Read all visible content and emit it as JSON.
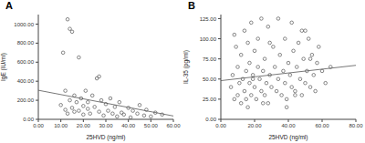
{
  "chart_data": [
    {
      "type": "scatter",
      "title": "A",
      "x_label": "25HVD (ng/ml)",
      "y_label": "IgE (IU/ml)",
      "color": "#555555",
      "marker": "circle",
      "x": [
        10,
        11,
        12,
        12,
        13,
        13,
        14,
        14,
        15,
        15,
        16,
        16,
        17,
        18,
        18,
        19,
        20,
        20,
        21,
        22,
        22,
        23,
        24,
        25,
        26,
        27,
        27,
        28,
        29,
        30,
        31,
        32,
        33,
        34,
        35,
        36,
        37,
        38,
        40,
        41,
        42,
        44,
        45,
        47,
        48,
        50,
        52,
        55
      ],
      "values": [
        150,
        700,
        100,
        300,
        1050,
        60,
        950,
        200,
        920,
        120,
        80,
        250,
        180,
        650,
        90,
        220,
        140,
        50,
        300,
        110,
        180,
        60,
        250,
        130,
        430,
        450,
        80,
        200,
        40,
        160,
        90,
        220,
        60,
        130,
        30,
        180,
        70,
        50,
        120,
        20,
        90,
        60,
        150,
        40,
        100,
        30,
        70,
        50
      ],
      "fit_line": {
        "x": [
          0,
          60
        ],
        "y": [
          305,
          35
        ]
      },
      "xlim": [
        0,
        60
      ],
      "xticks": [
        {
          "value": 0,
          "label": "0.00"
        },
        {
          "value": 10,
          "label": "10.00"
        },
        {
          "value": 20,
          "label": "20.00"
        },
        {
          "value": 30,
          "label": "30.00"
        },
        {
          "value": 40,
          "label": "40.00"
        },
        {
          "value": 50,
          "label": "50.00"
        },
        {
          "value": 60,
          "label": "60.00"
        }
      ],
      "ylim": [
        0,
        1100
      ],
      "yticks": [
        {
          "value": 0,
          "label": "0.00"
        },
        {
          "value": 200,
          "label": "200.00"
        },
        {
          "value": 400,
          "label": "400.00"
        },
        {
          "value": 600,
          "label": "600.00"
        },
        {
          "value": 800,
          "label": "800.00"
        },
        {
          "value": 1000,
          "label": "1000.00"
        }
      ]
    },
    {
      "type": "scatter",
      "title": "B",
      "x_label": "25HVD (ng/ml)",
      "y_label": "IL-35 (pg/ml)",
      "color": "#555555",
      "marker": "circle",
      "x": [
        6,
        7,
        8,
        9,
        10,
        10,
        11,
        12,
        12,
        13,
        14,
        14,
        15,
        15,
        16,
        17,
        17,
        18,
        18,
        19,
        20,
        20,
        21,
        22,
        22,
        23,
        24,
        24,
        25,
        26,
        26,
        27,
        28,
        28,
        29,
        30,
        31,
        32,
        33,
        34,
        35,
        36,
        37,
        38,
        38,
        39,
        40,
        41,
        42,
        42,
        43,
        44,
        45,
        46,
        47,
        48,
        48,
        49,
        50,
        51,
        52,
        53,
        54,
        55,
        56,
        57,
        58,
        60,
        62,
        65,
        8,
        16,
        25,
        34,
        44,
        53,
        19,
        29,
        39,
        50
      ],
      "values": [
        40,
        55,
        25,
        90,
        30,
        65,
        45,
        20,
        80,
        50,
        110,
        35,
        60,
        25,
        95,
        45,
        70,
        30,
        120,
        55,
        40,
        85,
        25,
        65,
        100,
        50,
        35,
        125,
        60,
        30,
        75,
        45,
        115,
        20,
        55,
        40,
        90,
        65,
        35,
        50,
        80,
        30,
        60,
        100,
        45,
        25,
        70,
        55,
        120,
        40,
        85,
        35,
        65,
        95,
        50,
        30,
        110,
        75,
        45,
        60,
        100,
        40,
        80,
        55,
        35,
        70,
        90,
        60,
        45,
        65,
        105,
        15,
        20,
        125,
        30,
        75,
        50,
        95,
        15,
        110
      ],
      "fit_line": {
        "x": [
          0,
          80
        ],
        "y": [
          48,
          67
        ]
      },
      "xlim": [
        0,
        80
      ],
      "xticks": [
        {
          "value": 0,
          "label": "0.00"
        },
        {
          "value": 20,
          "label": "20.00"
        },
        {
          "value": 40,
          "label": "40.00"
        },
        {
          "value": 60,
          "label": "60.00"
        },
        {
          "value": 80,
          "label": "80.00"
        }
      ],
      "ylim": [
        0,
        130
      ],
      "yticks": [
        {
          "value": 0,
          "label": "0.00"
        },
        {
          "value": 25,
          "label": "25.00"
        },
        {
          "value": 50,
          "label": "50.00"
        },
        {
          "value": 75,
          "label": "75.00"
        },
        {
          "value": 100,
          "label": "100.00"
        },
        {
          "value": 125,
          "label": "125.00"
        }
      ]
    }
  ]
}
